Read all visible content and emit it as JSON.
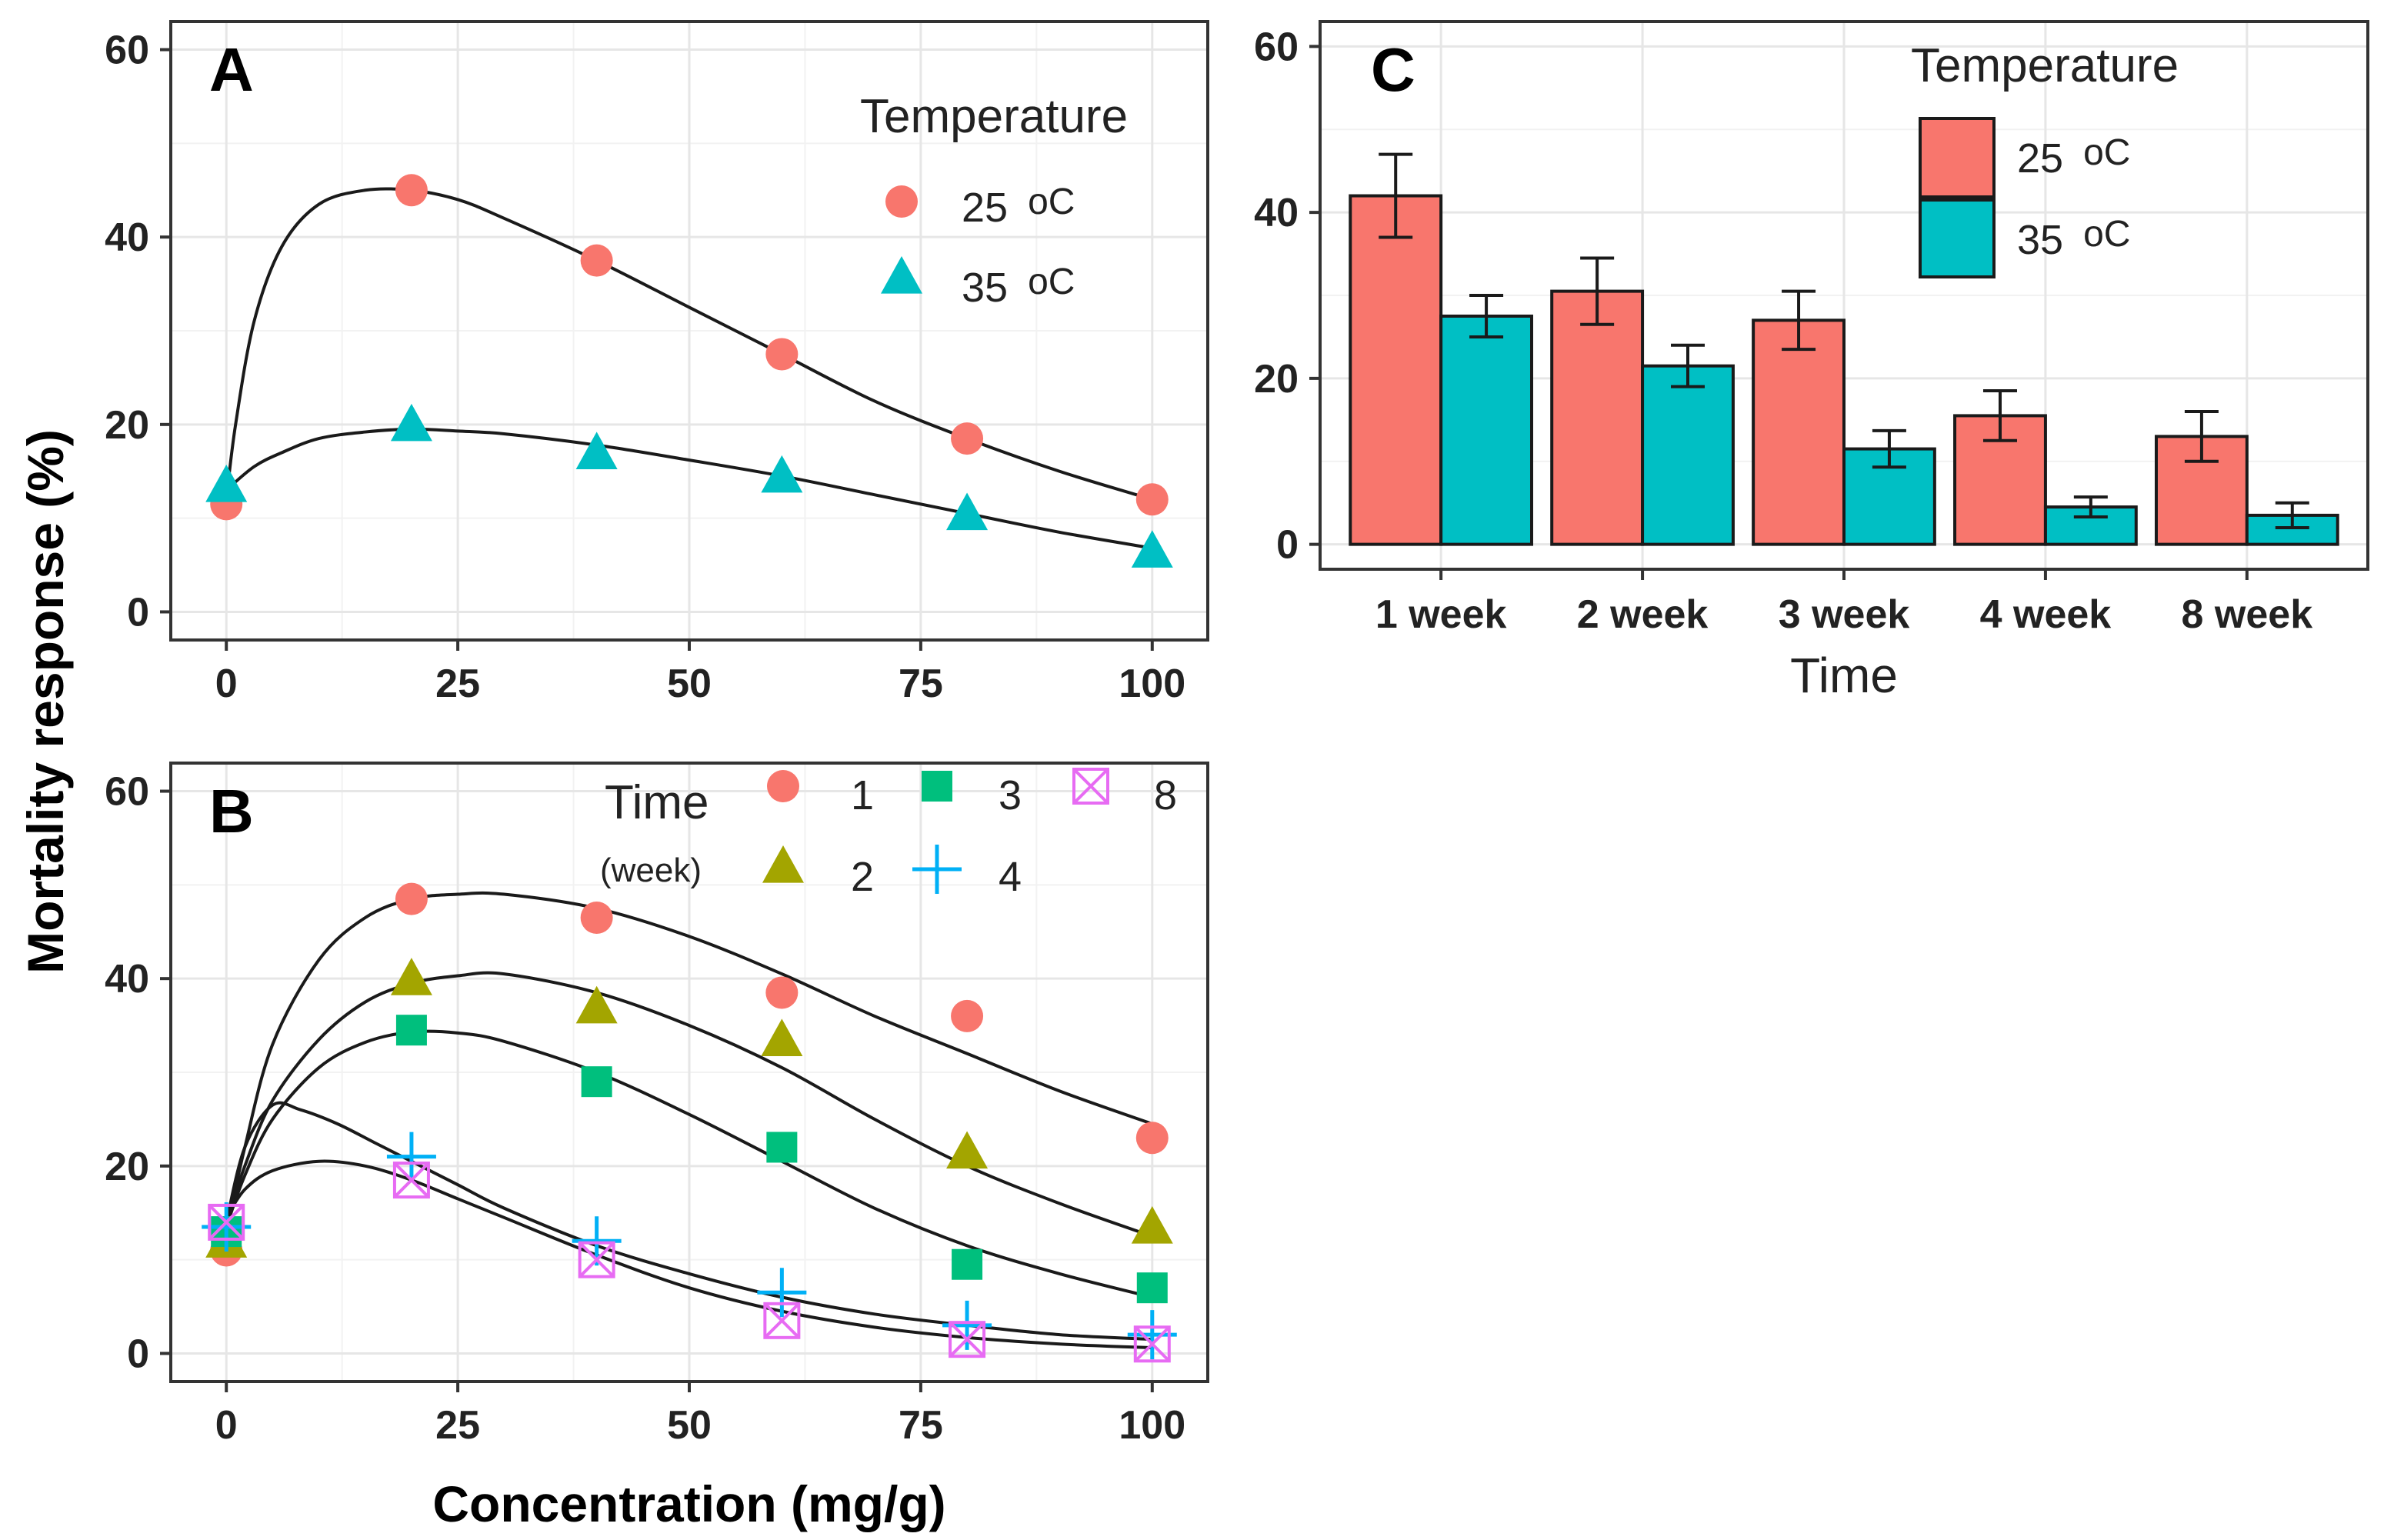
{
  "colors": {
    "c25": "#F8766D",
    "c35": "#00BFC4",
    "w1": "#F8766D",
    "w2": "#A3A500",
    "w3": "#00BF7D",
    "w4": "#00B0F6",
    "w8": "#E76BF3"
  },
  "shared": {
    "ylabel": "Mortality response (%)",
    "xlabel": "Concentration (mg/g)"
  },
  "chart_data": [
    {
      "type": "scatter",
      "panel": "A",
      "title": "A",
      "xlabel": "Concentration (mg/g)",
      "ylabel": "Mortality response (%)",
      "xlim": [
        -6,
        106
      ],
      "ylim": [
        -3,
        63
      ],
      "xticks": [
        0,
        25,
        50,
        75,
        100
      ],
      "yticks": [
        0,
        20,
        40,
        60
      ],
      "grid": true,
      "legend": {
        "title": "Temperature",
        "position": "top-right",
        "entries": [
          {
            "num": "25",
            "unit": "oC"
          },
          {
            "num": "35",
            "unit": "oC"
          }
        ]
      },
      "series": [
        {
          "name": "25 oC",
          "shape": "circle",
          "color_key": "c25",
          "x": [
            0,
            20,
            40,
            60,
            80,
            100
          ],
          "y": [
            11.5,
            45,
            37.5,
            27.5,
            18.5,
            12
          ],
          "fit_x": [
            0,
            1,
            3,
            6,
            10,
            15,
            20,
            25,
            30,
            40,
            50,
            60,
            70,
            80,
            90,
            100
          ],
          "fit_y": [
            12,
            20,
            31,
            39,
            43.5,
            45,
            45,
            44,
            42,
            37.5,
            32.5,
            27.5,
            22.5,
            18.5,
            15,
            12
          ]
        },
        {
          "name": "35 oC",
          "shape": "triangle",
          "color_key": "c35",
          "x": [
            0,
            20,
            40,
            60,
            80,
            100
          ],
          "y": [
            13.5,
            20,
            17,
            14.5,
            10.5,
            6.5
          ],
          "fit_x": [
            0,
            3,
            6,
            10,
            15,
            20,
            25,
            30,
            40,
            50,
            60,
            70,
            80,
            90,
            100
          ],
          "fit_y": [
            13,
            15.5,
            17,
            18.5,
            19.2,
            19.5,
            19.3,
            19,
            17.8,
            16.2,
            14.5,
            12.5,
            10.5,
            8.5,
            6.8
          ]
        }
      ]
    },
    {
      "type": "scatter",
      "panel": "B",
      "title": "B",
      "xlabel": "Concentration (mg/g)",
      "ylabel": "Mortality response (%)",
      "xlim": [
        -6,
        106
      ],
      "ylim": [
        -3,
        63
      ],
      "xticks": [
        0,
        25,
        50,
        75,
        100
      ],
      "yticks": [
        0,
        20,
        40,
        60
      ],
      "grid": true,
      "legend": {
        "title": "Time",
        "subtitle": "(week)",
        "position": "top-right",
        "entries": [
          "1",
          "2",
          "3",
          "4",
          "8"
        ]
      },
      "series": [
        {
          "name": "1",
          "shape": "circle",
          "color_key": "w1",
          "x": [
            0,
            20,
            40,
            60,
            80,
            100
          ],
          "y": [
            11,
            48.5,
            46.5,
            38.5,
            36,
            23
          ],
          "fit_x": [
            0,
            2,
            5,
            10,
            15,
            20,
            25,
            30,
            40,
            50,
            60,
            70,
            80,
            90,
            100
          ],
          "fit_y": [
            13,
            22,
            33,
            42,
            46.5,
            48.5,
            49,
            49,
            47.5,
            44.5,
            40.5,
            36,
            32,
            28,
            24.5
          ]
        },
        {
          "name": "2",
          "shape": "triangle",
          "color_key": "w2",
          "x": [
            0,
            20,
            40,
            60,
            80,
            100
          ],
          "y": [
            12,
            40,
            37,
            33.5,
            21.5,
            13.5
          ],
          "fit_x": [
            0,
            2,
            5,
            10,
            15,
            20,
            25,
            30,
            40,
            50,
            60,
            70,
            80,
            90,
            100
          ],
          "fit_y": [
            14,
            20,
            27,
            33.5,
            37.5,
            39.5,
            40.3,
            40.5,
            38.5,
            35,
            30.5,
            25,
            20,
            16,
            12.5
          ]
        },
        {
          "name": "3",
          "shape": "square",
          "color_key": "w3",
          "x": [
            0,
            20,
            40,
            60,
            80,
            100
          ],
          "y": [
            13,
            34.5,
            29,
            22,
            9.5,
            7
          ],
          "fit_x": [
            0,
            2,
            5,
            10,
            15,
            20,
            25,
            30,
            40,
            50,
            60,
            70,
            80,
            90,
            100
          ],
          "fit_y": [
            13.5,
            19,
            25,
            30.5,
            33.2,
            34.3,
            34.2,
            33.3,
            30,
            25.5,
            20.5,
            15.5,
            11.5,
            8.5,
            6
          ]
        },
        {
          "name": "4",
          "shape": "plus",
          "color_key": "w4",
          "x": [
            0,
            20,
            40,
            60,
            80,
            100
          ],
          "y": [
            13.5,
            21,
            12,
            6.5,
            3,
            2
          ],
          "fit_x": [
            0,
            2,
            5,
            8,
            12,
            16,
            20,
            25,
            30,
            40,
            50,
            60,
            70,
            80,
            90,
            100
          ],
          "fit_y": [
            14,
            22,
            26.5,
            26,
            24.5,
            22.5,
            20.5,
            18,
            15.5,
            11.5,
            8.5,
            6,
            4.2,
            3,
            2,
            1.5
          ]
        },
        {
          "name": "8",
          "shape": "square-x",
          "color_key": "w8",
          "x": [
            0,
            20,
            40,
            60,
            80,
            100
          ],
          "y": [
            14,
            18.5,
            10,
            3.5,
            1.5,
            1
          ],
          "fit_x": [
            0,
            2,
            5,
            10,
            15,
            20,
            25,
            30,
            40,
            50,
            60,
            70,
            80,
            90,
            100
          ],
          "fit_y": [
            14.5,
            17.5,
            19.5,
            20.5,
            20,
            18.5,
            16.5,
            14.5,
            10.5,
            7,
            4.5,
            2.8,
            1.7,
            1,
            0.6
          ]
        }
      ]
    },
    {
      "type": "bar",
      "panel": "C",
      "title": "C",
      "xlabel": "Time",
      "ylabel": "",
      "ylim": [
        -3,
        63
      ],
      "yticks": [
        0,
        20,
        40,
        60
      ],
      "grid": true,
      "categories": [
        "1 week",
        "2 week",
        "3 week",
        "4 week",
        "8 week"
      ],
      "legend": {
        "title": "Temperature",
        "position": "top-right",
        "entries": [
          {
            "num": "25",
            "unit": "oC"
          },
          {
            "num": "35",
            "unit": "oC"
          }
        ]
      },
      "series": [
        {
          "name": "25 oC",
          "color_key": "c25",
          "values": [
            42,
            30.5,
            27,
            15.5,
            13
          ],
          "err": [
            5,
            4,
            3.5,
            3,
            3
          ]
        },
        {
          "name": "35 oC",
          "color_key": "c35",
          "values": [
            27.5,
            21.5,
            11.5,
            4.5,
            3.5
          ],
          "err": [
            2.5,
            2.5,
            2.2,
            1.2,
            1.5
          ]
        }
      ]
    }
  ]
}
